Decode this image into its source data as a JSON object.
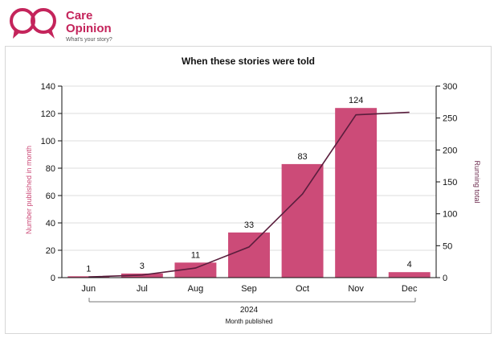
{
  "brand": {
    "name_line1": "Care",
    "name_line2": "Opinion",
    "tagline": "What's your story?"
  },
  "colors": {
    "brand": "#c4245b",
    "bar": "#cc4b78",
    "line": "#5a1e3d",
    "left_axis_label": "#cc4b78",
    "right_axis_label": "#6b2a4d"
  },
  "chart_data": {
    "type": "bar",
    "title": "When these stories were told",
    "categories": [
      "Jun",
      "Jul",
      "Aug",
      "Sep",
      "Oct",
      "Nov",
      "Dec"
    ],
    "group_label": "2024",
    "xlabel": "Month published",
    "ylabel": "Number published in month",
    "y2label": "Running total",
    "ylim": [
      0,
      140
    ],
    "yticks": [
      0,
      20,
      40,
      60,
      80,
      100,
      120,
      140
    ],
    "y2lim": [
      0,
      300
    ],
    "y2ticks": [
      0,
      50,
      100,
      150,
      200,
      250,
      300
    ],
    "grid": true,
    "series": [
      {
        "values": [
          1,
          3,
          11,
          33,
          83,
          124,
          4
        ]
      },
      {
        "type": "line",
        "axis": "right",
        "values": [
          1,
          4,
          15,
          48,
          131,
          255,
          259
        ]
      }
    ],
    "data_labels": [
      "1",
      "3",
      "11",
      "33",
      "83",
      "124",
      "4"
    ]
  }
}
